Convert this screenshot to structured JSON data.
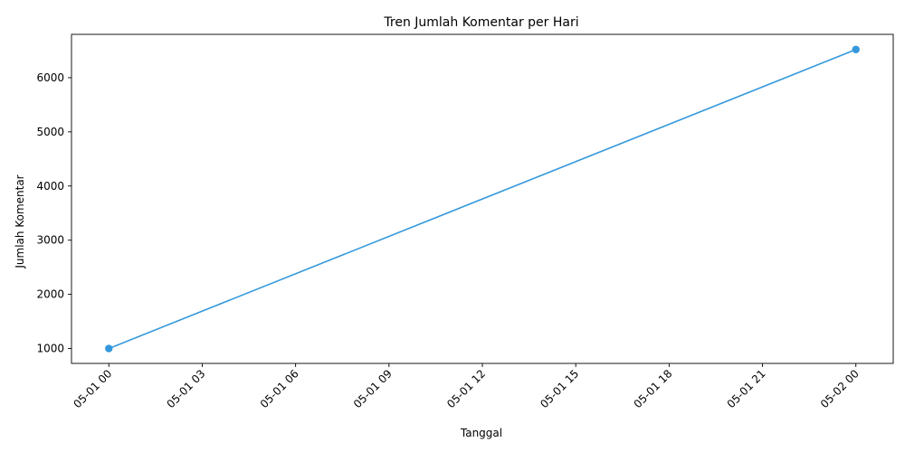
{
  "chart_data": {
    "type": "line",
    "title": "Tren Jumlah Komentar per Hari",
    "xlabel": "Tanggal",
    "ylabel": "Jumlah Komentar",
    "x_ticks": [
      "05-01 00",
      "05-01 03",
      "05-01 06",
      "05-01 09",
      "05-01 12",
      "05-01 15",
      "05-01 18",
      "05-01 21",
      "05-02 00"
    ],
    "y_ticks": [
      1000,
      2000,
      3000,
      4000,
      5000,
      6000
    ],
    "x_tick_hours": [
      0,
      3,
      6,
      9,
      12,
      15,
      18,
      21,
      24
    ],
    "xlim_hours": [
      -1.2,
      25.2
    ],
    "ylim": [
      725,
      6800
    ],
    "grid": false,
    "series": [
      {
        "color": "#3498db",
        "marker": "circle",
        "points": [
          {
            "x": "05-01 00",
            "x_hours": 0,
            "y": 1000
          },
          {
            "x": "05-02 00",
            "x_hours": 24,
            "y": 6520
          }
        ]
      }
    ]
  }
}
